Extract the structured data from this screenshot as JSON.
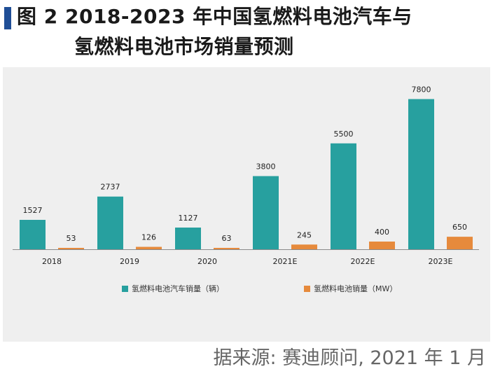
{
  "figure": {
    "label": "图 2",
    "title_line1": "2018-2023 年中国氢燃料电池汽车与",
    "title_line2": "氢燃料电池市场销量预测",
    "source": "据来源: 赛迪顾问, 2021 年 1 月"
  },
  "colors": {
    "vehicles": "#27a09f",
    "fuel_cells": "#e68a3c",
    "axis": "#8a8a8a"
  },
  "chart_data": {
    "type": "bar",
    "title": "2018-2023 年中国氢燃料电池汽车与氢燃料电池市场销量预测",
    "categories": [
      "2018",
      "2019",
      "2020",
      "2021E",
      "2022E",
      "2023E"
    ],
    "series": [
      {
        "name": "氢燃料电池汽车销量（辆）",
        "values": [
          1527,
          2737,
          1127,
          3800,
          5500,
          7800
        ]
      },
      {
        "name": "氢燃料电池销量（MW）",
        "values": [
          53,
          126,
          63,
          245,
          400,
          650
        ]
      }
    ],
    "ylim": [
      0,
      8000
    ],
    "xlabel": "",
    "ylabel": "",
    "grid": false,
    "legend": "bottom"
  }
}
